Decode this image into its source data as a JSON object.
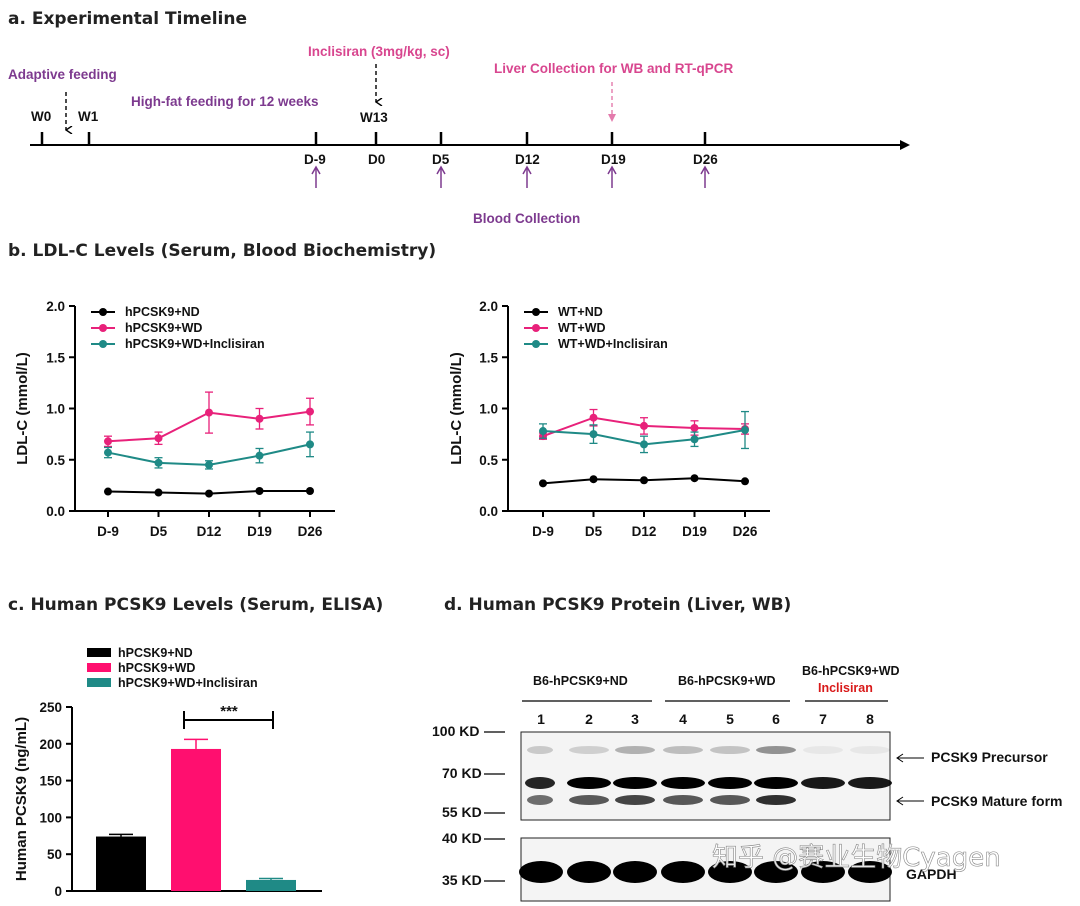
{
  "colors": {
    "nd": "#000000",
    "wd": "#e8217a",
    "inclisiran": "#1f8a86",
    "purple": "#7d3a8f",
    "pink": "#d8468f",
    "red": "#d91a1a"
  },
  "panels": {
    "a_title": "a. Experimental Timeline",
    "b_title": "b. LDL-C Levels (Serum, Blood Biochemistry)",
    "c_title": "c. Human PCSK9 Levels (Serum, ELISA)",
    "d_title": "d. Human PCSK9 Protein (Liver, WB)"
  },
  "timeline": {
    "adaptive_feeding": "Adaptive feeding",
    "high_fat": "High-fat feeding for 12 weeks",
    "inclisiran_dose": "Inclisiran (3mg/kg, sc)",
    "liver_collection": "Liver Collection for WB and RT-qPCR",
    "blood_collection": "Blood Collection",
    "week_labels": [
      "W0",
      "W1",
      "W13"
    ],
    "day_labels": [
      "D-9",
      "D0",
      "D5",
      "D12",
      "D19",
      "D26"
    ]
  },
  "chart_data": [
    {
      "type": "line",
      "id": "ldl_hpcsk9",
      "categories": [
        "D-9",
        "D5",
        "D12",
        "D19",
        "D26"
      ],
      "ylabel": "LDL-C (mmol/L)",
      "ylim": [
        0,
        2.0
      ],
      "yticks": [
        "0.0",
        "0.5",
        "1.0",
        "1.5",
        "2.0"
      ],
      "legend_position": "top-left",
      "series": [
        {
          "name": "hPCSK9+ND",
          "color": "#000000",
          "values": [
            0.19,
            0.18,
            0.17,
            0.195,
            0.195
          ],
          "errors": [
            0.01,
            0.01,
            0.01,
            0.01,
            0.01
          ]
        },
        {
          "name": "hPCSK9+WD",
          "color": "#e8217a",
          "values": [
            0.68,
            0.71,
            0.96,
            0.9,
            0.97
          ],
          "errors": [
            0.05,
            0.06,
            0.2,
            0.1,
            0.13
          ]
        },
        {
          "name": "hPCSK9+WD+Inclisiran",
          "color": "#1f8a86",
          "values": [
            0.57,
            0.47,
            0.45,
            0.54,
            0.65
          ],
          "errors": [
            0.05,
            0.05,
            0.04,
            0.07,
            0.12
          ]
        }
      ]
    },
    {
      "type": "line",
      "id": "ldl_wt",
      "categories": [
        "D-9",
        "D5",
        "D12",
        "D19",
        "D26"
      ],
      "ylabel": "LDL-C (mmol/L)",
      "ylim": [
        0,
        2.0
      ],
      "yticks": [
        "0.0",
        "0.5",
        "1.0",
        "1.5",
        "2.0"
      ],
      "legend_position": "top-left",
      "series": [
        {
          "name": "WT+ND",
          "color": "#000000",
          "values": [
            0.27,
            0.31,
            0.3,
            0.32,
            0.29
          ],
          "errors": [
            0.01,
            0.01,
            0.01,
            0.01,
            0.01
          ]
        },
        {
          "name": "WT+WD",
          "color": "#e8217a",
          "values": [
            0.73,
            0.91,
            0.83,
            0.81,
            0.8
          ],
          "errors": [
            0.03,
            0.08,
            0.08,
            0.07,
            0.05
          ]
        },
        {
          "name": "WT+WD+Inclisiran",
          "color": "#1f8a86",
          "values": [
            0.78,
            0.75,
            0.65,
            0.7,
            0.79
          ],
          "errors": [
            0.07,
            0.09,
            0.08,
            0.07,
            0.18
          ]
        }
      ]
    },
    {
      "type": "bar",
      "id": "pcsk9_elisa",
      "categories": [
        "hPCSK9+ND",
        "hPCSK9+WD",
        "hPCSK9+WD+Inclisiran"
      ],
      "values": [
        74,
        193,
        15
      ],
      "errors": [
        3,
        13,
        2
      ],
      "colors": [
        "#000000",
        "#ff0f6f",
        "#1f8a86"
      ],
      "ylabel": "Human PCSK9 (ng/mL)",
      "ylim": [
        0,
        250
      ],
      "yticks": [
        "0",
        "50",
        "100",
        "150",
        "200",
        "250"
      ],
      "significance": "***",
      "legend_position": "top-left"
    }
  ],
  "western_blot": {
    "group_nd": "B6-hPCSK9+ND",
    "group_wd": "B6-hPCSK9+WD",
    "group_inc_line1": "B6-hPCSK9+WD",
    "group_inc_line2": "Inclisiran",
    "lanes": [
      "1",
      "2",
      "3",
      "4",
      "5",
      "6",
      "7",
      "8"
    ],
    "markers": [
      "100 KD",
      "70 KD",
      "55 KD",
      "40 KD",
      "35 KD"
    ],
    "precursor": "PCSK9 Precursor",
    "mature": "PCSK9 Mature form",
    "gapdh": "GAPDH"
  },
  "watermark": "知乎 @赛业生物Cyagen"
}
